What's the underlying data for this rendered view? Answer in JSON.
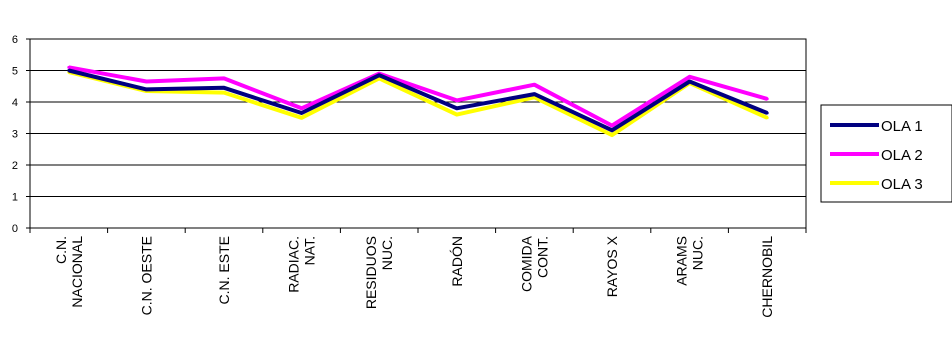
{
  "chart_data": {
    "type": "line",
    "title": "",
    "xlabel": "",
    "ylabel": "",
    "ylim": [
      0,
      6
    ],
    "yticks": [
      "0",
      "1",
      "2",
      "3",
      "4",
      "5",
      "6"
    ],
    "grid": true,
    "legend_position": "right",
    "categories": [
      [
        "C.N.",
        "NACIONAL"
      ],
      [
        "C.N. OESTE"
      ],
      [
        "C.N. ESTE"
      ],
      [
        "RADIAC.",
        "NAT."
      ],
      [
        "RESIDUOS",
        "NUC."
      ],
      [
        "RADÓN"
      ],
      [
        "COMIDA",
        "CONT."
      ],
      [
        "RAYOS X"
      ],
      [
        "ARAMS",
        "NUC."
      ],
      [
        "CHERNOBIL"
      ]
    ],
    "series": [
      {
        "name": "OLA 1",
        "color": "#000080",
        "values": [
          5.0,
          4.4,
          4.45,
          3.65,
          4.85,
          3.8,
          4.25,
          3.1,
          4.65,
          3.65
        ]
      },
      {
        "name": "OLA 2",
        "color": "#ff00ff",
        "values": [
          5.1,
          4.65,
          4.75,
          3.8,
          4.9,
          4.05,
          4.55,
          3.25,
          4.8,
          4.1
        ]
      },
      {
        "name": "OLA 3",
        "color": "#ffff00",
        "values": [
          4.95,
          4.35,
          4.3,
          3.5,
          4.75,
          3.6,
          4.15,
          2.95,
          4.6,
          3.5
        ]
      }
    ]
  }
}
